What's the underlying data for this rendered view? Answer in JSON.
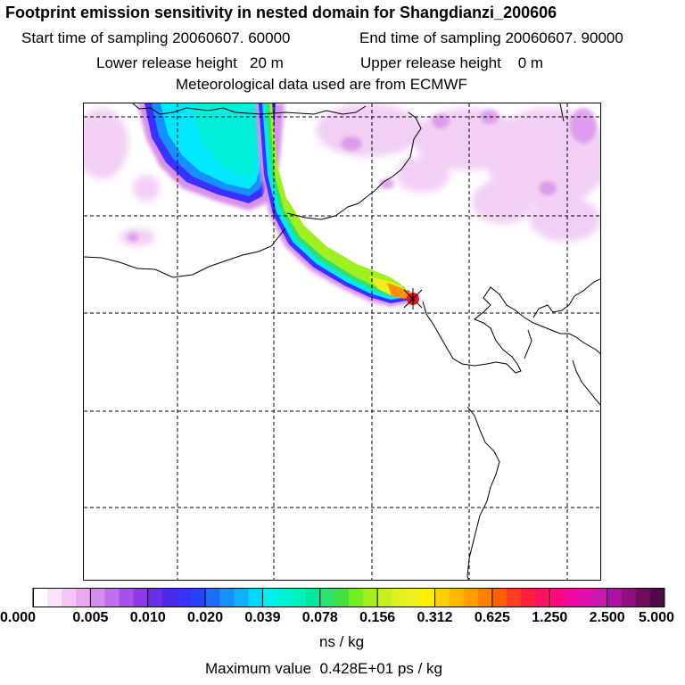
{
  "header": {
    "title": "Footprint emission sensitivity in nested domain for Shangdianzi_200606",
    "start_time": "Start time of sampling 20060607. 60000",
    "end_time": "End time of sampling 20060607. 90000",
    "lower_height": "Lower release height   20 m",
    "upper_height": "Upper release height    0 m",
    "met_data": "Meteorological data used are from ECMWF"
  },
  "map": {
    "source_station": "Shangdianzi",
    "plume_colors": {
      "background": "#ffffff",
      "light_magenta": "#f0c8f4",
      "blue": "#3a3cff",
      "cyan": "#00e8ff",
      "green": "#30e070",
      "yellow": "#f0f020",
      "orange": "#ff9000",
      "red": "#ff1010"
    }
  },
  "colorbar": {
    "tick_labels": [
      "0.000",
      "0.005",
      "0.010",
      "0.020",
      "0.039",
      "0.078",
      "0.156",
      "0.312",
      "0.625",
      "1.250",
      "2.500",
      "5.000"
    ],
    "colors": [
      "#ffffff",
      "#fbe2fb",
      "#f5c6f5",
      "#eaa8f0",
      "#d48ef0",
      "#c070ef",
      "#a850ee",
      "#9038ec",
      "#6a30e8",
      "#4c28e8",
      "#3a30ff",
      "#2840ff",
      "#1e6cff",
      "#1690ff",
      "#10b0ff",
      "#00d8ff",
      "#00f0f0",
      "#00f0d8",
      "#00f0c0",
      "#00e8a0",
      "#30e070",
      "#40e040",
      "#70f020",
      "#a0f020",
      "#c8f020",
      "#e0f020",
      "#f0f020",
      "#fff000",
      "#ffd000",
      "#ffb800",
      "#ff9c00",
      "#ff8000",
      "#ff6000",
      "#ff3c20",
      "#ff2040",
      "#ff1060",
      "#ff0880",
      "#f008a0",
      "#e010b0",
      "#c818b0",
      "#b010a0",
      "#901080",
      "#700c60",
      "#500848"
    ],
    "units": "ns / kg",
    "max_value": "Maximum value  0.428E+01 ps / kg"
  }
}
